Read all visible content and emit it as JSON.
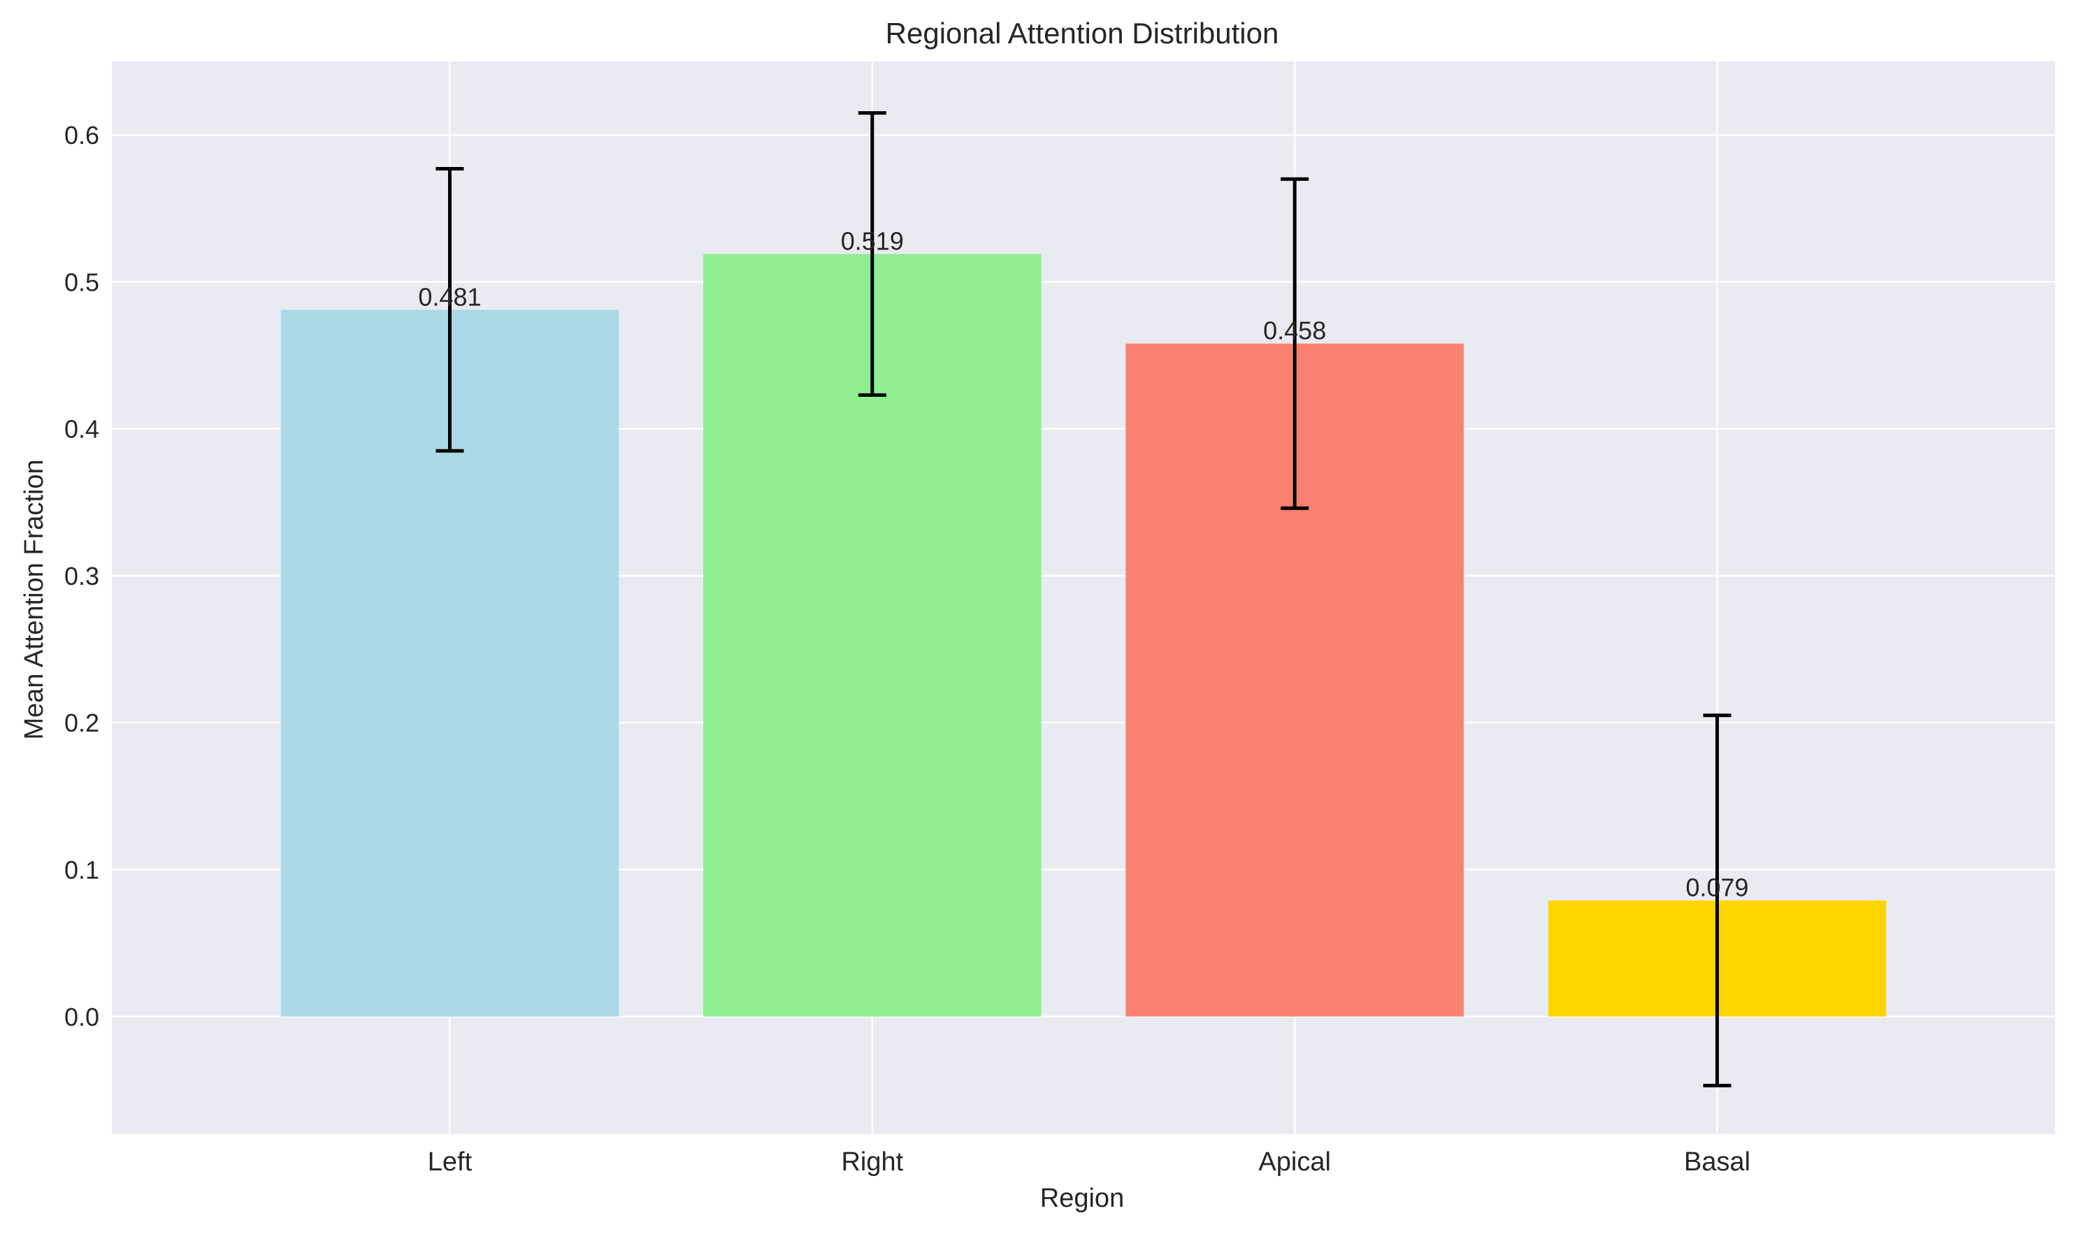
{
  "chart_data": {
    "type": "bar",
    "title": "Regional Attention Distribution",
    "xlabel": "Region",
    "ylabel": "Mean Attention Fraction",
    "categories": [
      "Left",
      "Right",
      "Apical",
      "Basal"
    ],
    "values": [
      0.481,
      0.519,
      0.458,
      0.079
    ],
    "errors": [
      0.096,
      0.096,
      0.112,
      0.126
    ],
    "value_labels": [
      "0.481",
      "0.519",
      "0.458",
      "0.079"
    ],
    "colors": [
      "#add8e6",
      "#90ee90",
      "#fa8072",
      "#ffd700"
    ],
    "ylim": [
      -0.08,
      0.65
    ],
    "yticks": [
      0.0,
      0.1,
      0.2,
      0.3,
      0.4,
      0.5,
      0.6
    ],
    "ytick_labels": [
      "0.0",
      "0.1",
      "0.2",
      "0.3",
      "0.4",
      "0.5",
      "0.6"
    ],
    "grid": true,
    "background": "#eaeaf2",
    "grid_color": "#ffffff",
    "error_color": "#000000"
  }
}
